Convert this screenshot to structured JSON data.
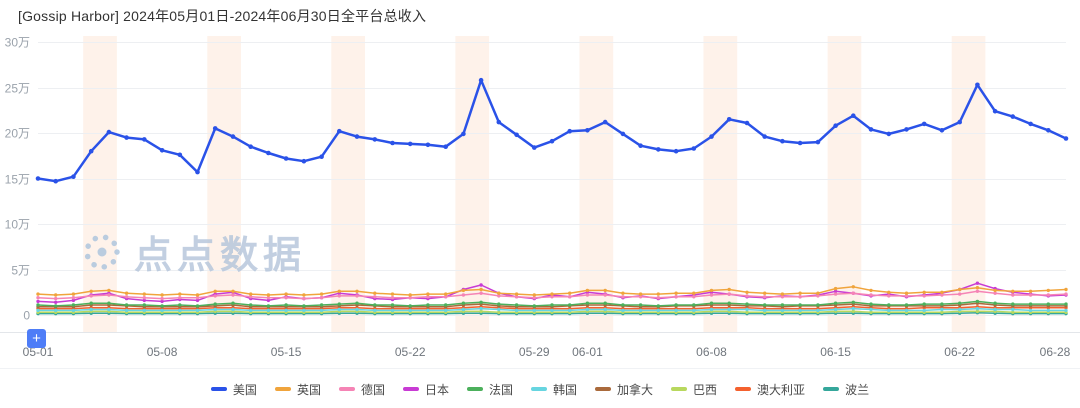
{
  "header": {
    "title": "[Gossip Harbor]  2024年05月01日-2024年06月30日全平台总收入"
  },
  "watermark": {
    "brand": "点点数据"
  },
  "controls": {
    "add_button": "+"
  },
  "chart_data": {
    "type": "line",
    "title": "[Gossip Harbor] 2024年05月01日-2024年06月30日全平台总收入",
    "unit": "万",
    "ylim": [
      0,
      30
    ],
    "yticks": [
      0,
      5,
      10,
      15,
      20,
      25,
      30
    ],
    "ytick_labels": [
      "0",
      "5万",
      "10万",
      "15万",
      "20万",
      "25万",
      "30万"
    ],
    "grid": true,
    "grid_color": "#edeff2",
    "band_color": "rgba(250,150,80,0.12)",
    "separator_color": "#e3e6ea",
    "legend_position": "bottom",
    "x_labels": [
      {
        "label": "05-01",
        "day": 0
      },
      {
        "label": "05-08",
        "day": 7
      },
      {
        "label": "05-15",
        "day": 14
      },
      {
        "label": "05-22",
        "day": 21
      },
      {
        "label": "05-29",
        "day": 28
      },
      {
        "label": "06-01",
        "day": 31
      },
      {
        "label": "06-08",
        "day": 38
      },
      {
        "label": "06-15",
        "day": 45
      },
      {
        "label": "06-22",
        "day": 52
      },
      {
        "label": "06-28",
        "day": 58
      }
    ],
    "weekend_bands": [
      [
        3,
        4
      ],
      [
        10,
        11
      ],
      [
        17,
        18
      ],
      [
        24,
        25
      ],
      [
        31,
        32
      ],
      [
        38,
        39
      ],
      [
        45,
        46
      ],
      [
        52,
        53
      ]
    ],
    "series": [
      {
        "id": "us",
        "name": "美国",
        "color": "#2a52e8",
        "values": [
          15.0,
          14.7,
          15.2,
          18.0,
          20.1,
          19.5,
          19.3,
          18.1,
          17.6,
          15.7,
          20.5,
          19.6,
          18.5,
          17.8,
          17.2,
          16.9,
          17.4,
          20.2,
          19.6,
          19.3,
          18.9,
          18.8,
          18.7,
          18.5,
          19.9,
          25.8,
          21.2,
          19.8,
          18.4,
          19.1,
          20.2,
          20.3,
          21.2,
          19.9,
          18.6,
          18.2,
          18.0,
          18.3,
          19.6,
          21.5,
          21.1,
          19.6,
          19.1,
          18.9,
          19.0,
          20.8,
          21.9,
          20.4,
          19.9,
          20.4,
          21.0,
          20.3,
          21.2,
          25.3,
          22.4,
          21.8,
          21.0,
          20.3,
          19.4
        ]
      },
      {
        "id": "uk",
        "name": "英国",
        "color": "#f0a43c",
        "values": [
          2.3,
          2.2,
          2.3,
          2.6,
          2.7,
          2.4,
          2.3,
          2.2,
          2.3,
          2.2,
          2.6,
          2.6,
          2.3,
          2.2,
          2.3,
          2.2,
          2.3,
          2.6,
          2.6,
          2.4,
          2.3,
          2.2,
          2.3,
          2.3,
          2.7,
          2.8,
          2.4,
          2.3,
          2.2,
          2.3,
          2.4,
          2.7,
          2.7,
          2.4,
          2.3,
          2.3,
          2.4,
          2.4,
          2.7,
          2.8,
          2.5,
          2.4,
          2.3,
          2.4,
          2.4,
          2.9,
          3.1,
          2.7,
          2.5,
          2.4,
          2.5,
          2.5,
          2.8,
          3.0,
          2.7,
          2.6,
          2.6,
          2.7,
          2.8
        ]
      },
      {
        "id": "de",
        "name": "德国",
        "color": "#f584b5",
        "values": [
          1.9,
          1.8,
          1.9,
          2.1,
          2.2,
          2.0,
          1.9,
          1.8,
          1.9,
          1.9,
          2.1,
          2.2,
          2.0,
          1.9,
          1.9,
          1.8,
          1.9,
          2.1,
          2.1,
          2.0,
          1.9,
          1.9,
          2.0,
          2.0,
          2.2,
          2.4,
          2.1,
          2.0,
          1.9,
          2.0,
          2.0,
          2.2,
          2.2,
          2.0,
          2.0,
          1.9,
          2.0,
          2.0,
          2.2,
          2.3,
          2.1,
          2.0,
          2.0,
          2.0,
          2.1,
          2.3,
          2.4,
          2.2,
          2.1,
          2.1,
          2.1,
          2.2,
          2.3,
          2.6,
          2.4,
          2.2,
          2.2,
          2.2,
          2.3
        ]
      },
      {
        "id": "jp",
        "name": "日本",
        "color": "#c83bd4",
        "values": [
          1.5,
          1.4,
          1.6,
          2.2,
          2.4,
          1.8,
          1.6,
          1.5,
          1.7,
          1.6,
          2.3,
          2.5,
          1.8,
          1.6,
          2.0,
          1.8,
          1.9,
          2.4,
          2.2,
          1.8,
          1.7,
          1.9,
          1.8,
          2.0,
          2.8,
          3.3,
          2.4,
          2.0,
          1.8,
          2.2,
          2.0,
          2.5,
          2.3,
          1.9,
          2.1,
          1.8,
          2.0,
          2.2,
          2.5,
          2.3,
          2.0,
          1.9,
          2.1,
          2.0,
          2.2,
          2.6,
          2.4,
          2.1,
          2.3,
          2.0,
          2.2,
          2.4,
          2.8,
          3.5,
          2.9,
          2.5,
          2.3,
          2.1,
          2.2
        ]
      },
      {
        "id": "fr",
        "name": "法国",
        "color": "#4cb05c",
        "values": [
          1.1,
          1.0,
          1.1,
          1.3,
          1.3,
          1.1,
          1.1,
          1.0,
          1.1,
          1.0,
          1.2,
          1.3,
          1.1,
          1.0,
          1.1,
          1.0,
          1.1,
          1.2,
          1.3,
          1.1,
          1.1,
          1.0,
          1.1,
          1.1,
          1.3,
          1.4,
          1.2,
          1.1,
          1.0,
          1.1,
          1.1,
          1.3,
          1.3,
          1.1,
          1.1,
          1.0,
          1.1,
          1.1,
          1.3,
          1.3,
          1.2,
          1.1,
          1.1,
          1.1,
          1.1,
          1.3,
          1.4,
          1.2,
          1.1,
          1.1,
          1.2,
          1.2,
          1.3,
          1.5,
          1.3,
          1.2,
          1.2,
          1.2,
          1.2
        ]
      },
      {
        "id": "kr",
        "name": "韩国",
        "color": "#67d5e0",
        "values": [
          0.5,
          0.5,
          0.5,
          0.6,
          0.6,
          0.5,
          0.5,
          0.5,
          0.5,
          0.5,
          0.6,
          0.6,
          0.5,
          0.5,
          0.5,
          0.5,
          0.5,
          0.6,
          0.6,
          0.5,
          0.5,
          0.5,
          0.5,
          0.5,
          0.6,
          0.7,
          0.6,
          0.5,
          0.5,
          0.5,
          0.5,
          0.6,
          0.6,
          0.5,
          0.5,
          0.5,
          0.5,
          0.5,
          0.6,
          0.6,
          0.6,
          0.5,
          0.5,
          0.5,
          0.5,
          0.6,
          0.7,
          0.6,
          0.5,
          0.5,
          0.5,
          0.6,
          0.6,
          0.7,
          0.6,
          0.6,
          0.5,
          0.5,
          0.5
        ]
      },
      {
        "id": "ca",
        "name": "加拿大",
        "color": "#aa6a3c",
        "values": [
          0.9,
          0.9,
          0.9,
          1.1,
          1.1,
          1.0,
          0.9,
          0.9,
          0.9,
          0.9,
          1.0,
          1.1,
          0.9,
          0.9,
          0.9,
          0.9,
          0.9,
          1.0,
          1.1,
          1.0,
          0.9,
          0.9,
          0.9,
          0.9,
          1.1,
          1.2,
          1.0,
          0.9,
          0.9,
          0.9,
          1.0,
          1.1,
          1.1,
          1.0,
          0.9,
          0.9,
          1.0,
          1.0,
          1.1,
          1.1,
          1.0,
          1.0,
          0.9,
          1.0,
          1.0,
          1.1,
          1.2,
          1.0,
          1.0,
          1.0,
          1.0,
          1.0,
          1.1,
          1.3,
          1.1,
          1.0,
          1.0,
          1.0,
          1.0
        ]
      },
      {
        "id": "br",
        "name": "巴西",
        "color": "#b8d85e",
        "values": [
          0.3,
          0.3,
          0.3,
          0.4,
          0.4,
          0.3,
          0.3,
          0.3,
          0.3,
          0.3,
          0.4,
          0.4,
          0.3,
          0.3,
          0.3,
          0.3,
          0.3,
          0.4,
          0.4,
          0.3,
          0.3,
          0.3,
          0.3,
          0.3,
          0.4,
          0.4,
          0.3,
          0.3,
          0.3,
          0.3,
          0.3,
          0.4,
          0.4,
          0.3,
          0.3,
          0.3,
          0.3,
          0.3,
          0.4,
          0.4,
          0.3,
          0.3,
          0.3,
          0.3,
          0.3,
          0.4,
          0.4,
          0.3,
          0.3,
          0.3,
          0.3,
          0.3,
          0.4,
          0.4,
          0.4,
          0.3,
          0.3,
          0.3,
          0.3
        ]
      },
      {
        "id": "au",
        "name": "澳大利亚",
        "color": "#f4612e",
        "values": [
          0.7,
          0.7,
          0.7,
          0.8,
          0.8,
          0.7,
          0.7,
          0.7,
          0.7,
          0.7,
          0.8,
          0.8,
          0.7,
          0.7,
          0.7,
          0.7,
          0.7,
          0.8,
          0.8,
          0.7,
          0.7,
          0.7,
          0.7,
          0.7,
          0.8,
          0.9,
          0.8,
          0.7,
          0.7,
          0.7,
          0.7,
          0.8,
          0.8,
          0.7,
          0.7,
          0.7,
          0.7,
          0.7,
          0.8,
          0.8,
          0.8,
          0.7,
          0.7,
          0.7,
          0.7,
          0.8,
          0.9,
          0.8,
          0.7,
          0.7,
          0.8,
          0.8,
          0.8,
          0.9,
          0.8,
          0.8,
          0.8,
          0.8,
          0.8
        ]
      },
      {
        "id": "pl",
        "name": "波兰",
        "color": "#35a79b",
        "values": [
          0.15,
          0.15,
          0.15,
          0.2,
          0.2,
          0.15,
          0.15,
          0.15,
          0.15,
          0.15,
          0.2,
          0.2,
          0.15,
          0.15,
          0.15,
          0.15,
          0.15,
          0.2,
          0.2,
          0.15,
          0.15,
          0.15,
          0.15,
          0.15,
          0.2,
          0.2,
          0.15,
          0.15,
          0.15,
          0.15,
          0.15,
          0.2,
          0.2,
          0.15,
          0.15,
          0.15,
          0.15,
          0.15,
          0.2,
          0.2,
          0.15,
          0.15,
          0.15,
          0.15,
          0.15,
          0.2,
          0.2,
          0.15,
          0.15,
          0.15,
          0.15,
          0.15,
          0.2,
          0.25,
          0.2,
          0.15,
          0.15,
          0.15,
          0.15
        ]
      }
    ]
  }
}
